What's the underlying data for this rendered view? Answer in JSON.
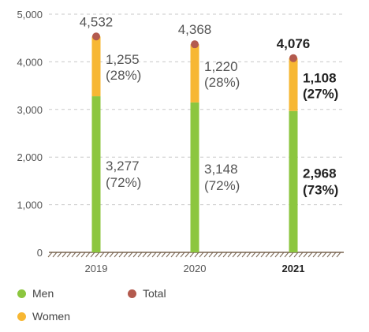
{
  "chart_data": {
    "type": "bar",
    "stacked": true,
    "categories": [
      "2019",
      "2020",
      "2021"
    ],
    "highlight_category": "2021",
    "ylim": [
      0,
      5000
    ],
    "yticks": [
      {
        "value": 0,
        "label": "0"
      },
      {
        "value": 1000,
        "label": "1,000"
      },
      {
        "value": 2000,
        "label": "2,000"
      },
      {
        "value": 3000,
        "label": "3,000"
      },
      {
        "value": 4000,
        "label": "4,000"
      },
      {
        "value": 5000,
        "label": "5,000"
      }
    ],
    "grid": "dashed horizontal",
    "series": [
      {
        "name": "Men",
        "color": "#8cc63f",
        "values": [
          3277,
          3148,
          2968
        ],
        "labels": [
          "3,277",
          "3,148",
          "2,968"
        ],
        "shares": [
          "(72%)",
          "(72%)",
          "(73%)"
        ]
      },
      {
        "name": "Women",
        "color": "#f7b733",
        "values": [
          1255,
          1220,
          1108
        ],
        "labels": [
          "1,255",
          "1,220",
          "1,108"
        ],
        "shares": [
          "(28%)",
          "(28%)",
          "(27%)"
        ]
      }
    ],
    "totals": {
      "name": "Total",
      "color": "#b35a4e",
      "values": [
        4532,
        4368,
        4076
      ],
      "labels": [
        "4,532",
        "4,368",
        "4,076"
      ]
    }
  },
  "legend": {
    "men": {
      "label": "Men",
      "color": "#8cc63f"
    },
    "total": {
      "label": "Total",
      "color": "#b35a4e"
    },
    "women": {
      "label": "Women",
      "color": "#f7b733"
    }
  }
}
